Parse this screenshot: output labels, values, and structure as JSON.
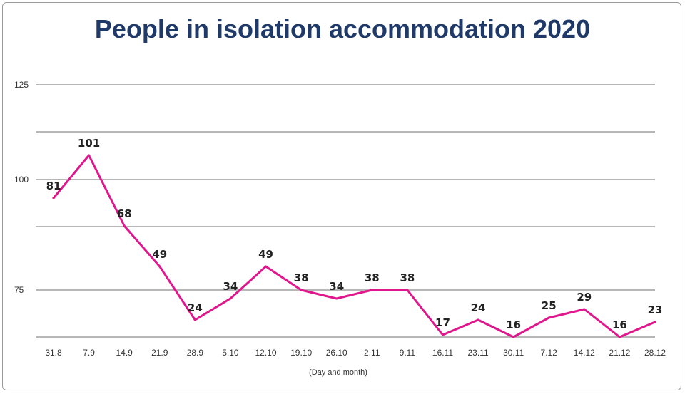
{
  "title": "People in isolation accommodation 2020",
  "colors": {
    "line": "#e0178c",
    "title": "#1f3a68",
    "grid": "#8c8c8c"
  },
  "chart_data": {
    "type": "line",
    "title": "People in isolation accommodation 2020",
    "xlabel": "(Day and month)",
    "ylabel": "",
    "yticks": [
      75,
      100,
      125
    ],
    "grid": true,
    "categories": [
      "31.8",
      "7.9",
      "14.9",
      "21.9",
      "28.9",
      "5.10",
      "12.10",
      "19.10",
      "26.10",
      "2.11",
      "9.11",
      "16.11",
      "23.11",
      "30.11",
      "7.12",
      "14.12",
      "21.12",
      "28.12"
    ],
    "series": [
      {
        "values": [
          81,
          101,
          68,
          49,
          24,
          34,
          49,
          38,
          34,
          38,
          38,
          17,
          24,
          16,
          25,
          29,
          16,
          23
        ]
      }
    ]
  }
}
